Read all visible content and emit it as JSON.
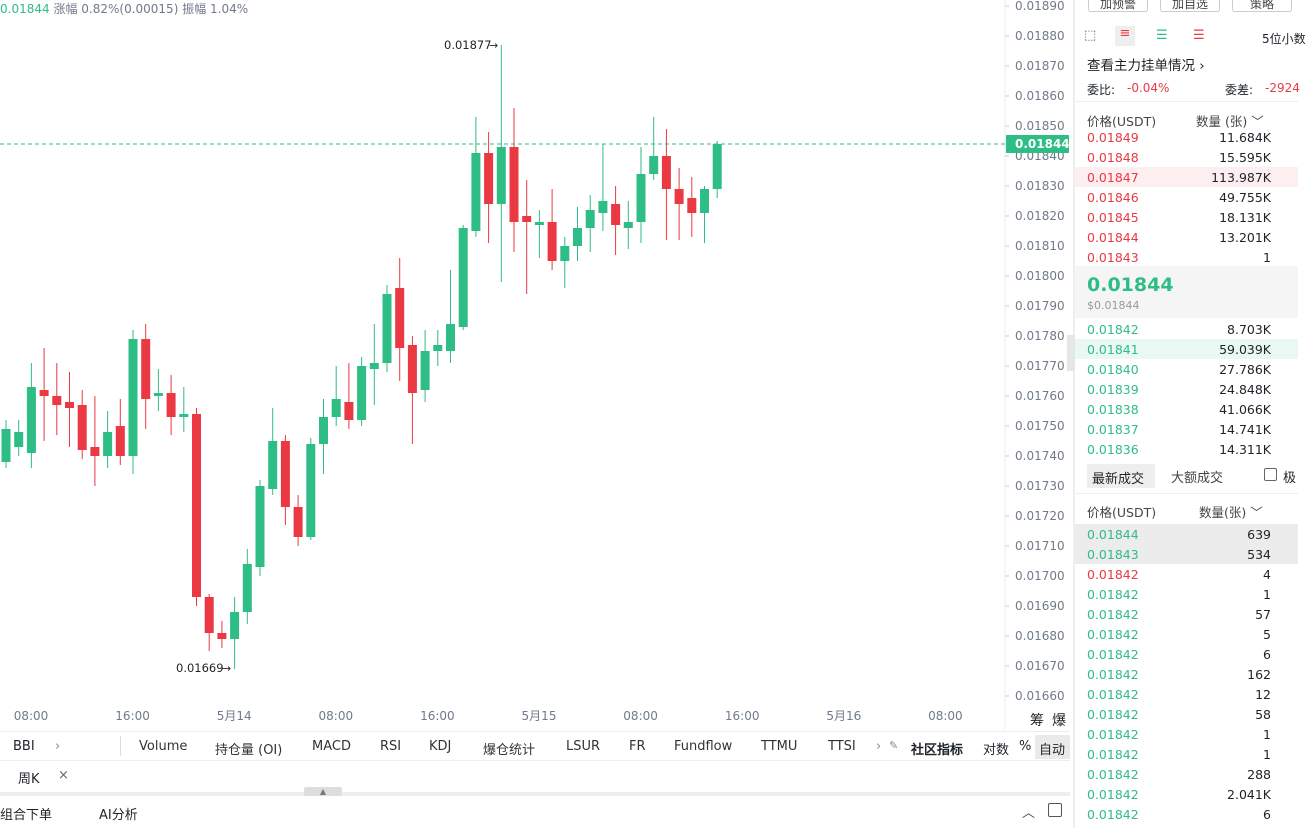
{
  "header": {
    "price": "0.01844",
    "change": "涨幅 0.82%(0.00015)",
    "amplitude": "振幅 1.04%"
  },
  "chart_data": {
    "type": "candlestick",
    "up_color": "#2ebd85",
    "down_color": "#ea3943",
    "candles": [
      {
        "open": 0.01738,
        "high": 0.01752,
        "low": 0.01736,
        "close": 0.01749
      },
      {
        "open": 0.01743,
        "high": 0.01752,
        "low": 0.0174,
        "close": 0.01748
      },
      {
        "open": 0.01741,
        "high": 0.01771,
        "low": 0.01736,
        "close": 0.01763
      },
      {
        "open": 0.01762,
        "high": 0.01776,
        "low": 0.01745,
        "close": 0.0176
      },
      {
        "open": 0.0176,
        "high": 0.01771,
        "low": 0.01747,
        "close": 0.01757
      },
      {
        "open": 0.01758,
        "high": 0.01768,
        "low": 0.01743,
        "close": 0.01756
      },
      {
        "open": 0.01757,
        "high": 0.01762,
        "low": 0.01739,
        "close": 0.01742
      },
      {
        "open": 0.01743,
        "high": 0.0176,
        "low": 0.0173,
        "close": 0.0174
      },
      {
        "open": 0.0174,
        "high": 0.01755,
        "low": 0.01736,
        "close": 0.01748
      },
      {
        "open": 0.0175,
        "high": 0.01759,
        "low": 0.01737,
        "close": 0.0174
      },
      {
        "open": 0.0174,
        "high": 0.01782,
        "low": 0.01734,
        "close": 0.01779
      },
      {
        "open": 0.01779,
        "high": 0.01784,
        "low": 0.01749,
        "close": 0.01759
      },
      {
        "open": 0.0176,
        "high": 0.01769,
        "low": 0.01755,
        "close": 0.01761
      },
      {
        "open": 0.01761,
        "high": 0.01767,
        "low": 0.01747,
        "close": 0.01753
      },
      {
        "open": 0.01753,
        "high": 0.01763,
        "low": 0.01748,
        "close": 0.01754
      },
      {
        "open": 0.01754,
        "high": 0.01756,
        "low": 0.0169,
        "close": 0.01693
      },
      {
        "open": 0.01693,
        "high": 0.01694,
        "low": 0.01675,
        "close": 0.01681
      },
      {
        "open": 0.01681,
        "high": 0.01685,
        "low": 0.01676,
        "close": 0.01679
      },
      {
        "open": 0.01679,
        "high": 0.01693,
        "low": 0.01669,
        "close": 0.01688
      },
      {
        "open": 0.01688,
        "high": 0.01709,
        "low": 0.01684,
        "close": 0.01704
      },
      {
        "open": 0.01703,
        "high": 0.01732,
        "low": 0.017,
        "close": 0.0173
      },
      {
        "open": 0.01729,
        "high": 0.01756,
        "low": 0.01727,
        "close": 0.01745
      },
      {
        "open": 0.01745,
        "high": 0.01747,
        "low": 0.01717,
        "close": 0.01723
      },
      {
        "open": 0.01723,
        "high": 0.01727,
        "low": 0.0171,
        "close": 0.01713
      },
      {
        "open": 0.01713,
        "high": 0.01746,
        "low": 0.01712,
        "close": 0.01744
      },
      {
        "open": 0.01744,
        "high": 0.01759,
        "low": 0.01734,
        "close": 0.01753
      },
      {
        "open": 0.01753,
        "high": 0.0177,
        "low": 0.0175,
        "close": 0.01759
      },
      {
        "open": 0.01758,
        "high": 0.01771,
        "low": 0.01749,
        "close": 0.01752
      },
      {
        "open": 0.01752,
        "high": 0.01773,
        "low": 0.0175,
        "close": 0.0177
      },
      {
        "open": 0.01769,
        "high": 0.01784,
        "low": 0.01757,
        "close": 0.01771
      },
      {
        "open": 0.01771,
        "high": 0.01797,
        "low": 0.01768,
        "close": 0.01794
      },
      {
        "open": 0.01796,
        "high": 0.01806,
        "low": 0.01765,
        "close": 0.01776
      },
      {
        "open": 0.01777,
        "high": 0.0178,
        "low": 0.01744,
        "close": 0.01761
      },
      {
        "open": 0.01762,
        "high": 0.01782,
        "low": 0.01758,
        "close": 0.01775
      },
      {
        "open": 0.01775,
        "high": 0.01782,
        "low": 0.0177,
        "close": 0.01777
      },
      {
        "open": 0.01775,
        "high": 0.01802,
        "low": 0.01771,
        "close": 0.01784
      },
      {
        "open": 0.01783,
        "high": 0.01817,
        "low": 0.01782,
        "close": 0.01816
      },
      {
        "open": 0.01815,
        "high": 0.01853,
        "low": 0.01813,
        "close": 0.01841
      },
      {
        "open": 0.01841,
        "high": 0.01848,
        "low": 0.01811,
        "close": 0.01824
      },
      {
        "open": 0.01824,
        "high": 0.01877,
        "low": 0.01798,
        "close": 0.01843
      },
      {
        "open": 0.01843,
        "high": 0.01856,
        "low": 0.01808,
        "close": 0.01818
      },
      {
        "open": 0.0182,
        "high": 0.01832,
        "low": 0.01794,
        "close": 0.01818
      },
      {
        "open": 0.01817,
        "high": 0.01822,
        "low": 0.01806,
        "close": 0.01818
      },
      {
        "open": 0.01818,
        "high": 0.01829,
        "low": 0.01802,
        "close": 0.01805
      },
      {
        "open": 0.01805,
        "high": 0.01813,
        "low": 0.01796,
        "close": 0.0181
      },
      {
        "open": 0.0181,
        "high": 0.01823,
        "low": 0.01805,
        "close": 0.01816
      },
      {
        "open": 0.01816,
        "high": 0.01827,
        "low": 0.01808,
        "close": 0.01822
      },
      {
        "open": 0.01821,
        "high": 0.01844,
        "low": 0.01815,
        "close": 0.01825
      },
      {
        "open": 0.01824,
        "high": 0.0183,
        "low": 0.01807,
        "close": 0.01817
      },
      {
        "open": 0.01816,
        "high": 0.01825,
        "low": 0.01809,
        "close": 0.01818
      },
      {
        "open": 0.01818,
        "high": 0.01843,
        "low": 0.01811,
        "close": 0.01834
      },
      {
        "open": 0.01834,
        "high": 0.01853,
        "low": 0.01832,
        "close": 0.0184
      },
      {
        "open": 0.0184,
        "high": 0.01849,
        "low": 0.01812,
        "close": 0.01829
      },
      {
        "open": 0.01829,
        "high": 0.01836,
        "low": 0.01812,
        "close": 0.01824
      },
      {
        "open": 0.01826,
        "high": 0.01833,
        "low": 0.01813,
        "close": 0.01821
      },
      {
        "open": 0.01821,
        "high": 0.0183,
        "low": 0.01811,
        "close": 0.01829
      },
      {
        "open": 0.01829,
        "high": 0.01845,
        "low": 0.01826,
        "close": 0.01844
      }
    ],
    "ylim": [
      0.01657,
      0.01892
    ],
    "yticks": [
      {
        "value": 0.0189,
        "label": "0.01890"
      },
      {
        "value": 0.0188,
        "label": "0.01880"
      },
      {
        "value": 0.0187,
        "label": "0.01870"
      },
      {
        "value": 0.0186,
        "label": "0.01860"
      },
      {
        "value": 0.0185,
        "label": "0.01850"
      },
      {
        "value": 0.0184,
        "label": "0.01840"
      },
      {
        "value": 0.0183,
        "label": "0.01830"
      },
      {
        "value": 0.0182,
        "label": "0.01820"
      },
      {
        "value": 0.0181,
        "label": "0.01810"
      },
      {
        "value": 0.018,
        "label": "0.01800"
      },
      {
        "value": 0.0179,
        "label": "0.01790"
      },
      {
        "value": 0.0178,
        "label": "0.01780"
      },
      {
        "value": 0.0177,
        "label": "0.01770"
      },
      {
        "value": 0.0176,
        "label": "0.01760"
      },
      {
        "value": 0.0175,
        "label": "0.01750"
      },
      {
        "value": 0.0174,
        "label": "0.01740"
      },
      {
        "value": 0.0173,
        "label": "0.01730"
      },
      {
        "value": 0.0172,
        "label": "0.01720"
      },
      {
        "value": 0.0171,
        "label": "0.01710"
      },
      {
        "value": 0.017,
        "label": "0.01700"
      },
      {
        "value": 0.0169,
        "label": "0.01690"
      },
      {
        "value": 0.0168,
        "label": "0.01680"
      },
      {
        "value": 0.0167,
        "label": "0.01670"
      },
      {
        "value": 0.0166,
        "label": "0.01660"
      }
    ],
    "xticks": [
      "08:00",
      "16:00",
      "5月14",
      "08:00",
      "16:00",
      "5月15",
      "08:00",
      "16:00",
      "5月16",
      "08:00"
    ],
    "annotations": {
      "high": "0.01877",
      "low": "0.01669"
    },
    "last_price": {
      "value": 0.01844,
      "label": "0.01844"
    }
  },
  "axis_tools": [
    "筹",
    "爆"
  ],
  "indicators": {
    "main": "BBI",
    "items": [
      "Volume",
      "持仓量 (OI)",
      "MACD",
      "RSI",
      "KDJ",
      "爆仓统计",
      "LSUR",
      "FR",
      "Fundflow",
      "TTMU",
      "TTSI"
    ],
    "community": "社区指标",
    "log": "对数",
    "percent": "%",
    "auto": "自动",
    "interval": "周K"
  },
  "bottom": {
    "combo": "组合下单",
    "ai": "AI分析"
  },
  "panel": {
    "buttons": [
      "加预警",
      "加自选",
      "策略"
    ],
    "decimals": "5位小数",
    "main_orders": "查看主力挂单情况",
    "ratio_label": "委比:",
    "ratio": "-0.04%",
    "diff_label": "委差:",
    "diff": "-2924",
    "price_header": "价格(USDT)",
    "qty_header": "数量 (张)",
    "asks": [
      {
        "price": "0.01849",
        "qty": "11.684K"
      },
      {
        "price": "0.01848",
        "qty": "15.595K"
      },
      {
        "price": "0.01847",
        "qty": "113.987K"
      },
      {
        "price": "0.01846",
        "qty": "49.755K"
      },
      {
        "price": "0.01845",
        "qty": "18.131K"
      },
      {
        "price": "0.01844",
        "qty": "13.201K"
      },
      {
        "price": "0.01843",
        "qty": "1"
      }
    ],
    "mid": "0.01844",
    "mid_usd": "$0.01844",
    "bids": [
      {
        "price": "0.01842",
        "qty": "8.703K"
      },
      {
        "price": "0.01841",
        "qty": "59.039K"
      },
      {
        "price": "0.01840",
        "qty": "27.786K"
      },
      {
        "price": "0.01839",
        "qty": "24.848K"
      },
      {
        "price": "0.01838",
        "qty": "41.066K"
      },
      {
        "price": "0.01837",
        "qty": "14.741K"
      },
      {
        "price": "0.01836",
        "qty": "14.311K"
      }
    ],
    "tabs": [
      "最新成交",
      "大额成交"
    ],
    "fast": "极",
    "trade_price_header": "价格(USDT)",
    "trade_qty_header": "数量(张)",
    "trades": [
      {
        "price": "0.01844",
        "qty": "639"
      },
      {
        "price": "0.01843",
        "qty": "534"
      },
      {
        "price": "0.01842",
        "qty": "4"
      },
      {
        "price": "0.01842",
        "qty": "1"
      },
      {
        "price": "0.01842",
        "qty": "57"
      },
      {
        "price": "0.01842",
        "qty": "5"
      },
      {
        "price": "0.01842",
        "qty": "6"
      },
      {
        "price": "0.01842",
        "qty": "162"
      },
      {
        "price": "0.01842",
        "qty": "12"
      },
      {
        "price": "0.01842",
        "qty": "58"
      },
      {
        "price": "0.01842",
        "qty": "1"
      },
      {
        "price": "0.01842",
        "qty": "1"
      },
      {
        "price": "0.01842",
        "qty": "288"
      },
      {
        "price": "0.01842",
        "qty": "2.041K"
      },
      {
        "price": "0.01842",
        "qty": "6"
      }
    ]
  }
}
